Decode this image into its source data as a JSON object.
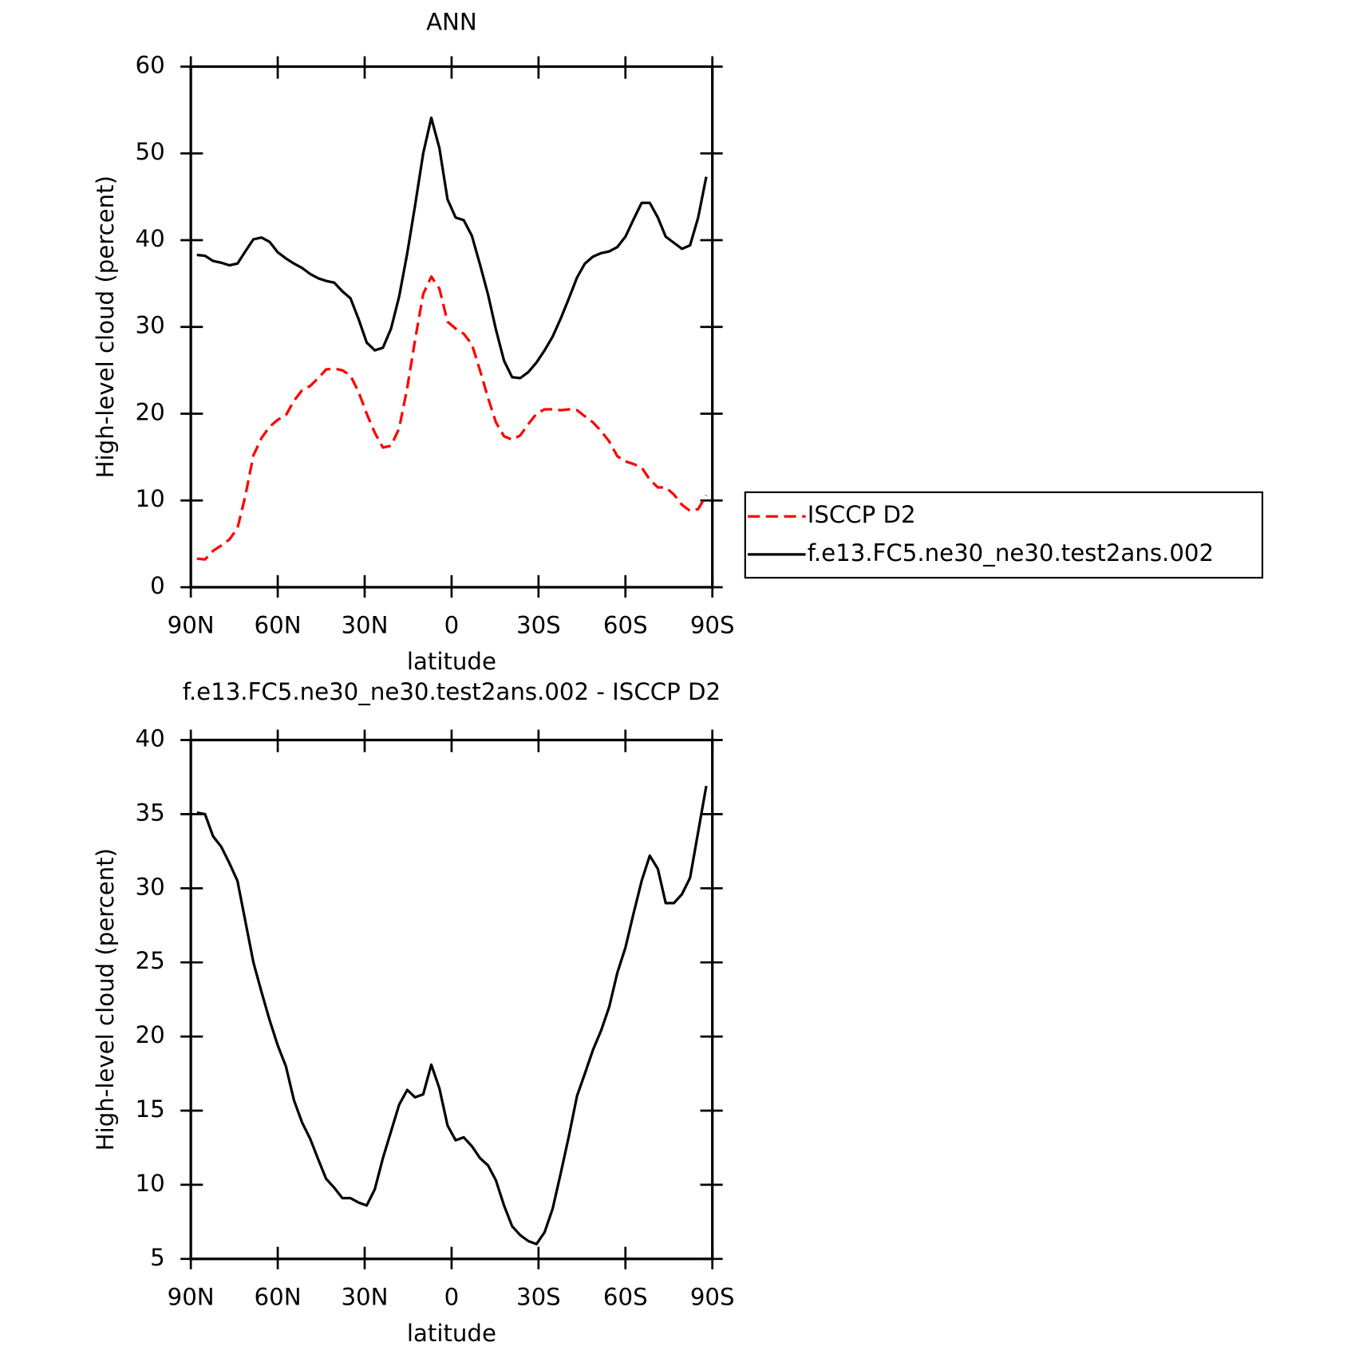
{
  "chart_data": [
    {
      "type": "line",
      "title": "ANN",
      "xlabel": "latitude",
      "ylabel": "High-level cloud (percent)",
      "x": [
        87.9,
        85.1,
        82.3,
        79.5,
        76.7,
        73.9,
        71.2,
        68.4,
        65.6,
        62.8,
        60.0,
        57.2,
        54.4,
        51.6,
        48.8,
        46.0,
        43.3,
        40.5,
        37.7,
        34.9,
        32.1,
        29.3,
        26.5,
        23.7,
        20.9,
        18.1,
        15.3,
        12.6,
        9.8,
        7.0,
        4.2,
        1.4,
        -1.4,
        -4.2,
        -7.0,
        -9.8,
        -12.6,
        -15.3,
        -18.1,
        -20.9,
        -23.7,
        -26.5,
        -29.3,
        -32.1,
        -34.9,
        -37.7,
        -40.5,
        -43.3,
        -46.0,
        -48.8,
        -51.6,
        -54.4,
        -57.2,
        -60.0,
        -62.8,
        -65.6,
        -68.4,
        -71.2,
        -73.9,
        -76.7,
        -79.5,
        -82.3,
        -85.1,
        -87.9
      ],
      "series": [
        {
          "name": "ISCCP D2",
          "color": "#ff0000",
          "dashed": true,
          "values": [
            3.3,
            3.2,
            4.2,
            4.8,
            5.5,
            6.8,
            10.5,
            15.2,
            17.2,
            18.5,
            19.3,
            19.8,
            21.5,
            22.7,
            23.2,
            24.1,
            25.1,
            25.2,
            25.0,
            24.4,
            22.5,
            20.0,
            17.8,
            16.1,
            16.3,
            18.3,
            23.0,
            28.5,
            33.8,
            35.8,
            34.4,
            30.6,
            29.8,
            29.2,
            28.0,
            25.0,
            21.8,
            19.0,
            17.4,
            17.0,
            17.5,
            18.8,
            20.0,
            20.5,
            20.5,
            20.4,
            20.5,
            20.4,
            19.7,
            19.0,
            18.0,
            16.8,
            15.1,
            14.5,
            14.2,
            13.8,
            12.4,
            11.5,
            11.5,
            10.7,
            9.5,
            8.8,
            9.0,
            10.6
          ]
        },
        {
          "name": "f.e13.FC5.ne30_ne30.test2ans.002",
          "color": "#000000",
          "dashed": false,
          "values": [
            38.3,
            38.2,
            37.6,
            37.4,
            37.1,
            37.3,
            38.7,
            40.1,
            40.3,
            39.8,
            38.6,
            37.9,
            37.3,
            36.8,
            36.1,
            35.6,
            35.3,
            35.1,
            34.1,
            33.3,
            30.9,
            28.2,
            27.3,
            27.6,
            29.8,
            33.5,
            38.5,
            44.0,
            50.0,
            54.1,
            50.6,
            44.7,
            42.6,
            42.3,
            40.5,
            37.2,
            33.7,
            29.7,
            26.1,
            24.2,
            24.1,
            24.8,
            25.9,
            27.3,
            28.9,
            31.0,
            33.3,
            35.7,
            37.3,
            38.1,
            38.5,
            38.7,
            39.2,
            40.4,
            42.4,
            44.3,
            44.3,
            42.6,
            40.4,
            39.7,
            39.0,
            39.4,
            42.6,
            47.3
          ]
        }
      ],
      "xlim": [
        90,
        -90
      ],
      "xticks": [
        {
          "value": 90,
          "label": "90N"
        },
        {
          "value": 60,
          "label": "60N"
        },
        {
          "value": 30,
          "label": "30N"
        },
        0,
        {
          "value": -30,
          "label": "30S"
        },
        {
          "value": -60,
          "label": "60S"
        },
        {
          "value": -90,
          "label": "90S"
        }
      ],
      "ylim": [
        0,
        60
      ],
      "yticks": [
        0,
        10,
        20,
        30,
        40,
        50,
        60
      ],
      "legend": "right"
    },
    {
      "type": "line",
      "title": "f.e13.FC5.ne30_ne30.test2ans.002 - ISCCP D2",
      "xlabel": "latitude",
      "ylabel": "High-level cloud (percent)",
      "x": [
        87.9,
        85.1,
        82.3,
        79.5,
        76.7,
        73.9,
        71.2,
        68.4,
        65.6,
        62.8,
        60.0,
        57.2,
        54.4,
        51.6,
        48.8,
        46.0,
        43.3,
        40.5,
        37.7,
        34.9,
        32.1,
        29.3,
        26.5,
        23.7,
        20.9,
        18.1,
        15.3,
        12.6,
        9.8,
        7.0,
        4.2,
        1.4,
        -1.4,
        -4.2,
        -7.0,
        -9.8,
        -12.6,
        -15.3,
        -18.1,
        -20.9,
        -23.7,
        -26.5,
        -29.3,
        -32.1,
        -34.9,
        -37.7,
        -40.5,
        -43.3,
        -46.0,
        -48.8,
        -51.6,
        -54.4,
        -57.2,
        -60.0,
        -62.8,
        -65.6,
        -68.4,
        -71.2,
        -73.9,
        -76.7,
        -79.5,
        -82.3,
        -85.1,
        -87.9
      ],
      "series": [
        {
          "color": "#000000",
          "dashed": false,
          "values": [
            35.1,
            35.0,
            33.5,
            32.8,
            31.7,
            30.5,
            27.8,
            25.0,
            23.0,
            21.1,
            19.4,
            18.0,
            15.7,
            14.2,
            13.1,
            11.7,
            10.4,
            9.8,
            9.1,
            9.1,
            8.8,
            8.6,
            9.7,
            11.8,
            13.6,
            15.4,
            16.4,
            15.9,
            16.1,
            18.1,
            16.5,
            14.0,
            13.0,
            13.2,
            12.6,
            11.8,
            11.3,
            10.3,
            8.6,
            7.2,
            6.6,
            6.2,
            6.0,
            6.8,
            8.4,
            10.8,
            13.3,
            16.0,
            17.5,
            19.1,
            20.4,
            22.0,
            24.3,
            26.0,
            28.3,
            30.5,
            32.2,
            31.3,
            29.0,
            29.0,
            29.6,
            30.7,
            33.8,
            36.9
          ]
        }
      ],
      "xlim": [
        90,
        -90
      ],
      "xticks": [
        {
          "value": 90,
          "label": "90N"
        },
        {
          "value": 60,
          "label": "60N"
        },
        {
          "value": 30,
          "label": "30N"
        },
        0,
        {
          "value": -30,
          "label": "30S"
        },
        {
          "value": -60,
          "label": "60S"
        },
        {
          "value": -90,
          "label": "90S"
        }
      ],
      "ylim": [
        5,
        40
      ],
      "yticks": [
        5,
        10,
        15,
        20,
        25,
        30,
        35,
        40
      ]
    }
  ]
}
